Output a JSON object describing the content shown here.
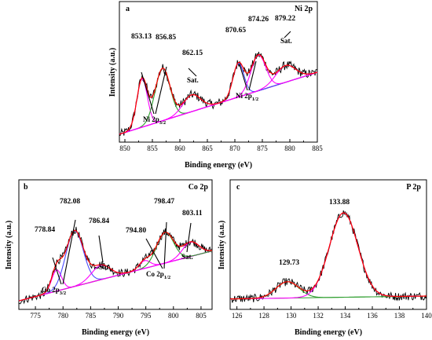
{
  "chart_data": [
    {
      "type": "line",
      "panel": "a",
      "title": "Ni 2p",
      "xlabel": "Binding energy (eV)",
      "ylabel": "Intensity (a.u.)",
      "xlim": [
        849,
        885
      ],
      "ylim": [
        0,
        1
      ],
      "x_ticks": [
        850,
        855,
        860,
        865,
        870,
        875,
        880,
        885
      ],
      "show_y_ticks": false,
      "grid": false,
      "background": {
        "x": [
          849,
          885
        ],
        "y": [
          0.03,
          0.62
        ]
      },
      "peaks": [
        {
          "label": "853.13",
          "center": 853.13,
          "height": 0.46,
          "width": 0.95,
          "color": "#ff00ff",
          "line": "Ni 2p3/2"
        },
        {
          "label": "856.85",
          "center": 856.85,
          "height": 0.5,
          "width": 1.35,
          "color": "#2e9e2e",
          "line": "Ni 2p3/2"
        },
        {
          "label": "862.15",
          "center": 862.15,
          "height": 0.16,
          "width": 1.6,
          "color": "#ff00ff",
          "line": "Sat."
        },
        {
          "label": "870.65",
          "center": 870.65,
          "height": 0.32,
          "width": 1.0,
          "color": "#4a4aff",
          "line": "Ni 2p1/2"
        },
        {
          "label": "874.26",
          "center": 874.26,
          "height": 0.34,
          "width": 1.35,
          "color": "#ff00ff",
          "line": "Ni 2p1/2"
        },
        {
          "label": "879.22",
          "center": 879.22,
          "height": 0.16,
          "width": 1.8,
          "color": "#ff00ff",
          "line": "Sat."
        }
      ],
      "sum_color": "#ff0000",
      "raw_color": "#000000",
      "background_color": "#990066",
      "annotations": {
        "sat_1": "Sat.",
        "sat_2": "Sat.",
        "main_label": "Ni 2p",
        "main_sub": "3/2",
        "second_label": "Ni 2p",
        "second_sub": "1/2"
      }
    },
    {
      "type": "line",
      "panel": "b",
      "title": "Co 2p",
      "xlabel": "Binding energy (eV)",
      "ylabel": "Intensity (a.u.)",
      "xlim": [
        772,
        807
      ],
      "ylim": [
        0,
        1
      ],
      "x_ticks": [
        775,
        780,
        785,
        790,
        795,
        800,
        805
      ],
      "show_y_ticks": false,
      "grid": false,
      "background": {
        "x": [
          772,
          807
        ],
        "y": [
          0.04,
          0.56
        ]
      },
      "peaks": [
        {
          "label": "778.84",
          "center": 778.84,
          "height": 0.22,
          "width": 0.9,
          "color": "#ff00ff",
          "line": "Co 2p3/2"
        },
        {
          "label": "782.08",
          "center": 782.08,
          "height": 0.58,
          "width": 1.6,
          "color": "#4a4aff",
          "line": "Co 2p3/2"
        },
        {
          "label": "786.84",
          "center": 786.84,
          "height": 0.15,
          "width": 1.7,
          "color": "#ff00ff",
          "line": "Sat."
        },
        {
          "label": "794.80",
          "center": 794.8,
          "height": 0.08,
          "width": 1.0,
          "color": "#ff00ff",
          "line": "Co 2p1/2"
        },
        {
          "label": "798.47",
          "center": 798.47,
          "height": 0.32,
          "width": 1.55,
          "color": "#2e9e2e",
          "line": "Co 2p1/2"
        },
        {
          "label": "803.11",
          "center": 803.11,
          "height": 0.15,
          "width": 1.5,
          "color": "#ff00ff",
          "line": "Sat."
        }
      ],
      "sum_color": "#ff0000",
      "raw_color": "#000000",
      "background_color": "#8a7a00",
      "annotations": {
        "sat_1": "Sat.",
        "sat_2": "Sat.",
        "main_label": "Co 2p",
        "main_sub": "3/2",
        "second_label": "Co 2p",
        "second_sub": "1/2"
      }
    },
    {
      "type": "line",
      "panel": "c",
      "title": "P 2p",
      "xlabel": "Binding energy (eV)",
      "ylabel": "Intensity (a.u.)",
      "xlim": [
        125.5,
        140
      ],
      "ylim": [
        0,
        1
      ],
      "x_ticks": [
        126,
        128,
        130,
        132,
        134,
        136,
        138,
        140
      ],
      "show_y_ticks": false,
      "grid": false,
      "background": {
        "x": [
          125.5,
          140
        ],
        "y": [
          0.06,
          0.09
        ]
      },
      "peaks": [
        {
          "label": "129.73",
          "center": 129.73,
          "height": 0.17,
          "width": 0.85,
          "color": "#2e9e2e",
          "line": ""
        },
        {
          "label": "133.88",
          "center": 133.88,
          "height": 0.88,
          "width": 1.05,
          "color": "#ff00ff",
          "line": ""
        }
      ],
      "sum_color": "#ff0000",
      "raw_color": "#000000",
      "background_color": "#2e9e2e"
    }
  ]
}
